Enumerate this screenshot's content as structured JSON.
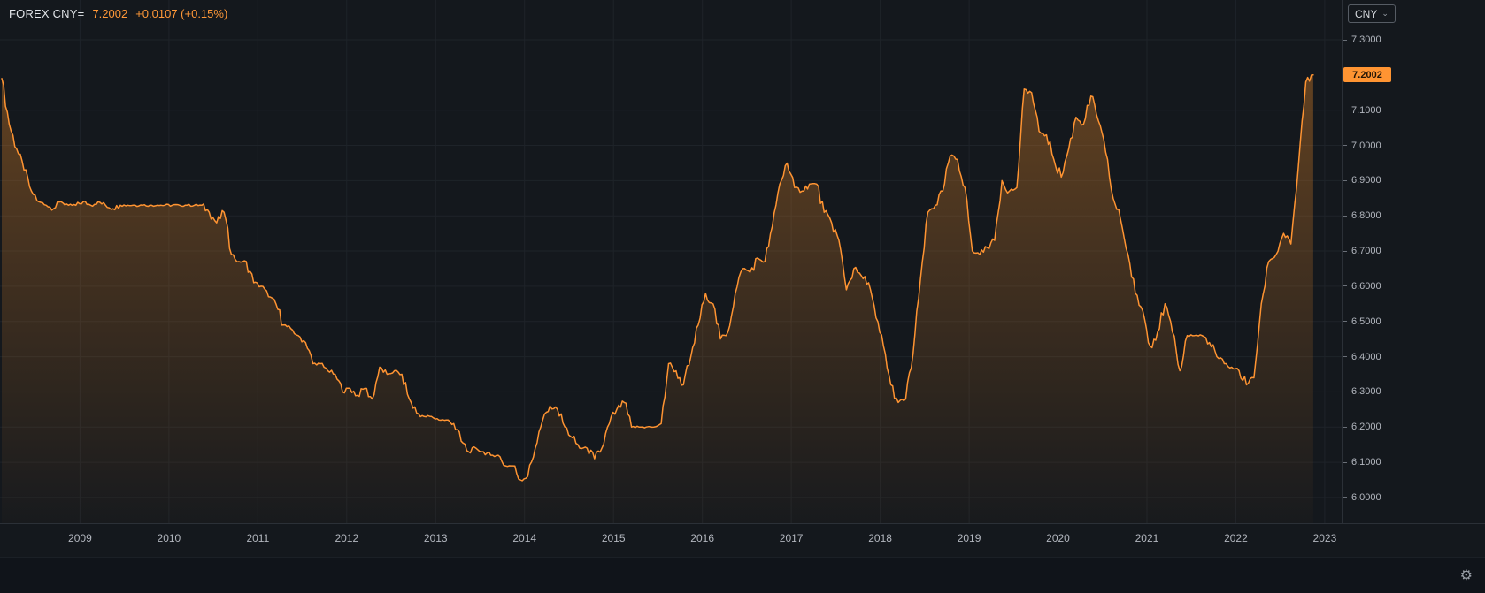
{
  "header": {
    "symbol": "FOREX CNY=",
    "last": "7.2002",
    "change": "+0.0107 (+0.15%)"
  },
  "axis_button": {
    "label": "CNY",
    "chevron": "⌄"
  },
  "price_tag": {
    "value": "7.2002"
  },
  "icons": {
    "gear": "⚙"
  },
  "colors": {
    "background": "#14181d",
    "accent": "#ff9432",
    "quote_text": "#ff9838",
    "axis_text": "#b2b6be",
    "grid": "#1e2329",
    "tag_bg": "#ff9432",
    "tag_text": "#231607"
  },
  "chart_data": {
    "type": "area",
    "title": "FOREX CNY= (USD/CNY exchange rate)",
    "xlabel": "",
    "ylabel": "",
    "grid": true,
    "legend": "none",
    "x_domain": [
      2008.1,
      2023.19
    ],
    "y_domain": [
      5.927,
      7.413
    ],
    "x_ticks": [
      2009,
      2010,
      2011,
      2012,
      2013,
      2014,
      2015,
      2016,
      2017,
      2018,
      2019,
      2020,
      2021,
      2022,
      2023
    ],
    "x_tick_labels": [
      "2009",
      "2010",
      "2011",
      "2012",
      "2013",
      "2014",
      "2015",
      "2016",
      "2017",
      "2018",
      "2019",
      "2020",
      "2021",
      "2022",
      "2023"
    ],
    "y_ticks": [
      7.3,
      7.1,
      7.0,
      6.9,
      6.8,
      6.7,
      6.6,
      6.5,
      6.4,
      6.3,
      6.2,
      6.1,
      6.0
    ],
    "y_tick_labels": [
      "7.3000",
      "7.1000",
      "7.0000",
      "6.9000",
      "6.8000",
      "6.7000",
      "6.6000",
      "6.5000",
      "6.4000",
      "6.3000",
      "6.2000",
      "6.1000",
      "6.0000"
    ],
    "series": [
      {
        "name": "CNY=",
        "x_start": 2008.12,
        "x_step_years": 0.0833333,
        "last_value": 7.2002,
        "values": [
          7.19,
          7.06,
          6.99,
          6.93,
          6.87,
          6.84,
          6.83,
          6.82,
          6.84,
          6.83,
          6.83,
          6.84,
          6.83,
          6.84,
          6.83,
          6.82,
          6.83,
          6.83,
          6.83,
          6.83,
          6.83,
          6.83,
          6.83,
          6.83,
          6.83,
          6.83,
          6.83,
          6.83,
          6.81,
          6.78,
          6.81,
          6.69,
          6.67,
          6.67,
          6.61,
          6.6,
          6.57,
          6.55,
          6.49,
          6.48,
          6.46,
          6.44,
          6.38,
          6.38,
          6.36,
          6.35,
          6.3,
          6.31,
          6.29,
          6.31,
          6.28,
          6.37,
          6.35,
          6.36,
          6.35,
          6.28,
          6.24,
          6.23,
          6.23,
          6.22,
          6.22,
          6.21,
          6.16,
          6.13,
          6.14,
          6.13,
          6.12,
          6.12,
          6.09,
          6.09,
          6.05,
          6.06,
          6.14,
          6.22,
          6.26,
          6.25,
          6.2,
          6.17,
          6.14,
          6.14,
          6.11,
          6.14,
          6.21,
          6.25,
          6.27,
          6.2,
          6.2,
          6.2,
          6.2,
          6.21,
          6.38,
          6.36,
          6.32,
          6.4,
          6.49,
          6.58,
          6.55,
          6.45,
          6.47,
          6.58,
          6.65,
          6.64,
          6.68,
          6.67,
          6.77,
          6.89,
          6.95,
          6.88,
          6.87,
          6.89,
          6.89,
          6.81,
          6.78,
          6.73,
          6.59,
          6.65,
          6.63,
          6.61,
          6.51,
          6.43,
          6.32,
          6.27,
          6.28,
          6.41,
          6.62,
          6.81,
          6.83,
          6.87,
          6.97,
          6.96,
          6.88,
          6.7,
          6.69,
          6.71,
          6.73,
          6.9,
          6.87,
          6.88,
          7.16,
          7.15,
          7.04,
          7.03,
          6.96,
          6.91,
          6.99,
          7.08,
          7.06,
          7.14,
          7.07,
          6.98,
          6.85,
          6.79,
          6.69,
          6.58,
          6.53,
          6.43,
          6.47,
          6.55,
          6.47,
          6.36,
          6.46,
          6.46,
          6.46,
          6.44,
          6.4,
          6.38,
          6.37,
          6.36,
          6.32,
          6.34,
          6.55,
          6.67,
          6.69,
          6.75,
          6.72,
          6.94,
          7.18,
          7.2002
        ]
      }
    ]
  }
}
